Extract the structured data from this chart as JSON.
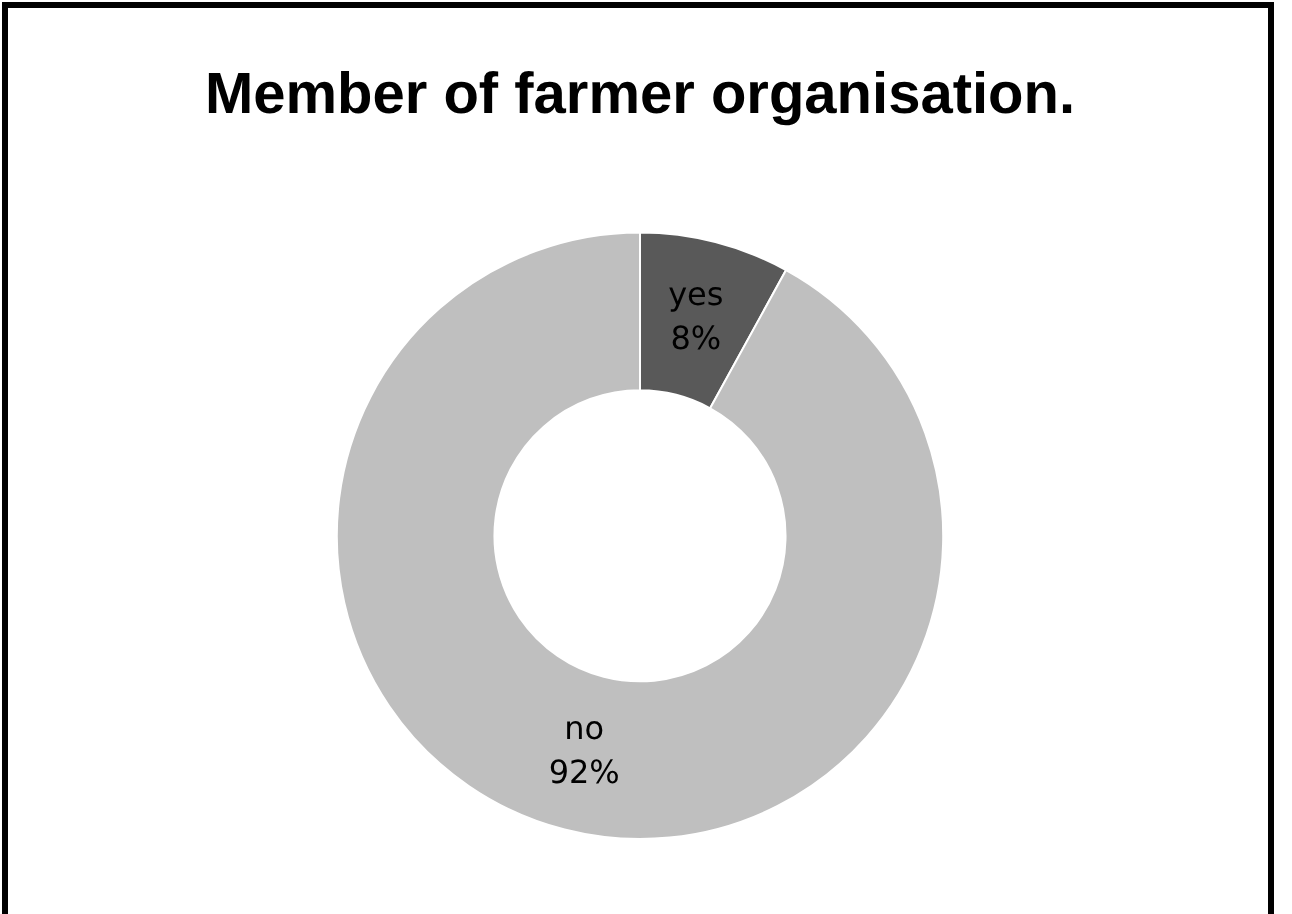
{
  "chart_data": {
    "type": "donut",
    "title": "Member of farmer organisation.",
    "categories": [
      "yes",
      "no"
    ],
    "values": [
      8,
      92
    ],
    "colors": [
      "#595959",
      "#bfbfbf"
    ],
    "value_labels": [
      "8%",
      "92%"
    ],
    "legend": false
  }
}
